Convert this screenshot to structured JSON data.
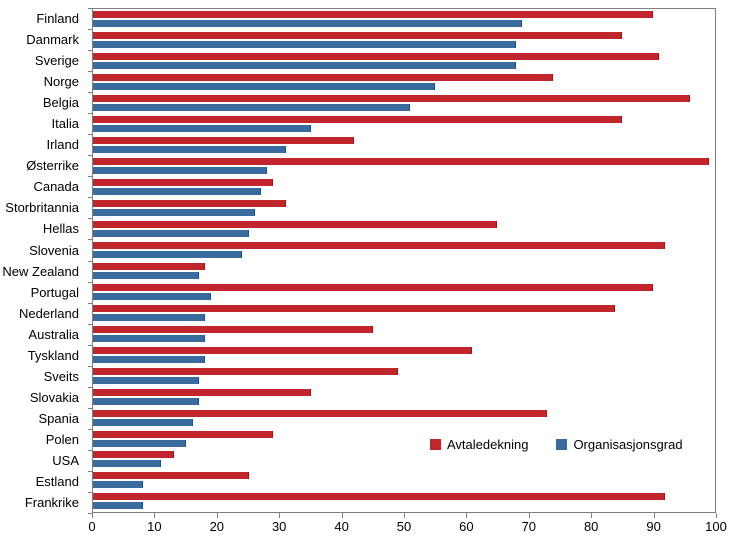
{
  "chart_data": {
    "type": "bar",
    "orientation": "horizontal",
    "title": "",
    "xlabel": "",
    "ylabel": "",
    "xlim": [
      0,
      100
    ],
    "x_ticks": [
      0,
      10,
      20,
      30,
      40,
      50,
      60,
      70,
      80,
      90,
      100
    ],
    "grid": false,
    "legend_position": "inside-bottom-right",
    "categories": [
      "Finland",
      "Danmark",
      "Sverige",
      "Norge",
      "Belgia",
      "Italia",
      "Irland",
      "Østerrike",
      "Canada",
      "Storbritannia",
      "Hellas",
      "Slovenia",
      "New Zealand",
      "Portugal",
      "Nederland",
      "Australia",
      "Tyskland",
      "Sveits",
      "Slovakia",
      "Spania",
      "Polen",
      "USA",
      "Estland",
      "Frankrike"
    ],
    "series": [
      {
        "name": "Avtaledekning",
        "color": "#c0262c",
        "border_color": "#8e1b20",
        "values": [
          90,
          85,
          91,
          74,
          96,
          85,
          42,
          99,
          29,
          31,
          65,
          92,
          18,
          90,
          84,
          45,
          61,
          49,
          35,
          73,
          29,
          13,
          25,
          92
        ]
      },
      {
        "name": "Organisasjonsgrad",
        "color": "#3a6b9e",
        "border_color": "#2a4f77",
        "values": [
          69,
          68,
          68,
          55,
          51,
          35,
          31,
          28,
          27,
          26,
          25,
          24,
          17,
          19,
          18,
          18,
          18,
          17,
          17,
          16,
          15,
          11,
          8,
          8
        ]
      }
    ]
  },
  "axis": {
    "tick_labels": [
      "0",
      "10",
      "20",
      "30",
      "40",
      "50",
      "60",
      "70",
      "80",
      "90",
      "100"
    ]
  },
  "legend": {
    "item1": "Avtaledekning",
    "item2": "Organisasjonsgrad"
  }
}
